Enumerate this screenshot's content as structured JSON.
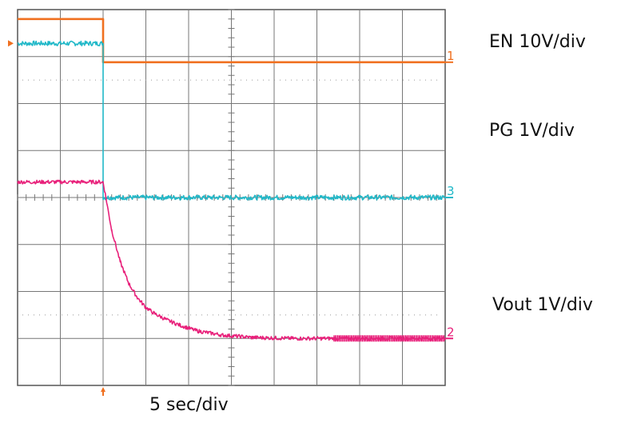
{
  "chart_data": {
    "type": "line",
    "title": "",
    "grid": true,
    "x_divisions": 10,
    "y_divisions": 8,
    "xlim": [
      0,
      10
    ],
    "ylim": [
      0,
      8
    ],
    "trigger_time_div": 2,
    "labels": {
      "en": "EN 10V/div",
      "pg": "PG 1V/div",
      "vout": "Vout 1V/div",
      "timebase": "5 sec/div"
    },
    "ground_markers": [
      {
        "channel": "1",
        "text": "1",
        "level_div": 6.88,
        "color": "#f07020"
      },
      {
        "channel": "3",
        "text": "3",
        "level_div": 4.0,
        "color": "#20b8c8"
      },
      {
        "channel": "2",
        "text": "2",
        "level_div": 1.0,
        "color": "#e8207a"
      }
    ],
    "series": [
      {
        "name": "EN",
        "color": "#f07020",
        "noise_div": 0,
        "x": [
          0,
          2,
          2,
          10
        ],
        "y": [
          7.8,
          7.8,
          6.88,
          6.88
        ]
      },
      {
        "name": "PG",
        "color": "#20b8c8",
        "noise_div": 0.05,
        "x": [
          0,
          2,
          2,
          10
        ],
        "y": [
          7.28,
          7.28,
          4.0,
          4.0
        ]
      },
      {
        "name": "Vout",
        "color": "#e8207a",
        "noise_div": 0.04,
        "x": [
          0,
          2,
          2.2,
          2.4,
          2.6,
          2.8,
          3.0,
          3.2,
          3.5,
          3.8,
          4.2,
          4.8,
          5.5,
          6.5,
          7.4,
          10
        ],
        "y": [
          4.33,
          4.33,
          3.31,
          2.63,
          2.17,
          1.87,
          1.66,
          1.53,
          1.39,
          1.28,
          1.16,
          1.07,
          1.02,
          1.0,
          1.0,
          1.0
        ]
      }
    ]
  }
}
